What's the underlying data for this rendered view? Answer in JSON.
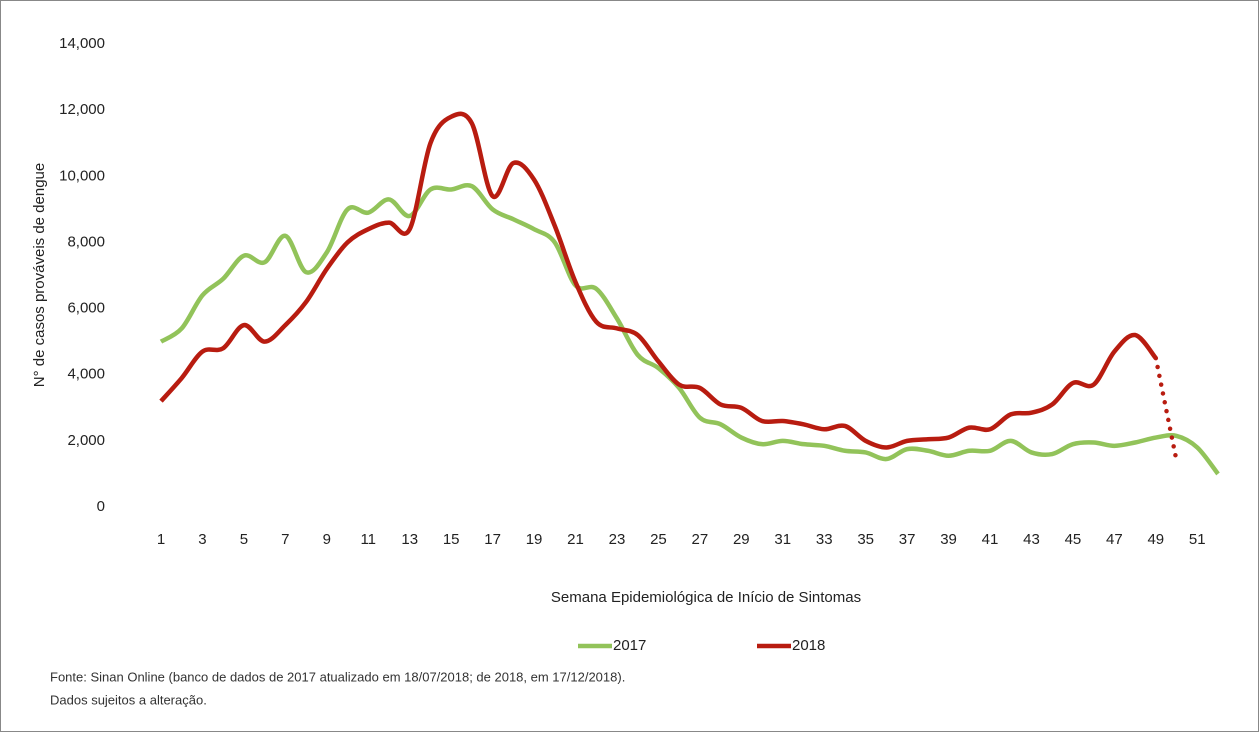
{
  "chart_data": {
    "type": "line",
    "y_label": "N° de casos prováveis de dengue",
    "x_label": "Semana Epidemiológica de Início de Sintomas",
    "x": [
      1,
      2,
      3,
      4,
      5,
      6,
      7,
      8,
      9,
      10,
      11,
      12,
      13,
      14,
      15,
      16,
      17,
      18,
      19,
      20,
      21,
      22,
      23,
      24,
      25,
      26,
      27,
      28,
      29,
      30,
      31,
      32,
      33,
      34,
      35,
      36,
      37,
      38,
      39,
      40,
      41,
      42,
      43,
      44,
      45,
      46,
      47,
      48,
      49,
      50,
      51,
      52
    ],
    "xlim": [
      1,
      52
    ],
    "xticks": [
      1,
      3,
      5,
      7,
      9,
      11,
      13,
      15,
      17,
      19,
      21,
      23,
      25,
      27,
      29,
      31,
      33,
      35,
      37,
      39,
      41,
      43,
      45,
      47,
      49,
      51
    ],
    "ylim": [
      0,
      14000
    ],
    "yticks": [
      0,
      {
        "value": 2000,
        "label": "2,000"
      },
      {
        "value": 4000,
        "label": "4,000"
      },
      {
        "value": 6000,
        "label": "6,000"
      },
      {
        "value": 8000,
        "label": "8,000"
      },
      {
        "value": 10000,
        "label": "10,000"
      },
      {
        "value": 12000,
        "label": "12,000"
      },
      {
        "value": 14000,
        "label": "14,000"
      }
    ],
    "series": [
      {
        "name": "2017",
        "color": "#92c35a",
        "values": [
          5000,
          5400,
          6400,
          6900,
          7600,
          7400,
          8200,
          7100,
          7700,
          9000,
          8900,
          9300,
          8800,
          9600,
          9600,
          9700,
          9000,
          8700,
          8400,
          8000,
          6700,
          6600,
          5700,
          4600,
          4200,
          3600,
          2700,
          2500,
          2100,
          1900,
          2000,
          1900,
          1850,
          1700,
          1650,
          1450,
          1750,
          1700,
          1550,
          1700,
          1700,
          2000,
          1650,
          1600,
          1900,
          1950,
          1850,
          1950,
          2100,
          2150,
          1800,
          1000
        ]
      },
      {
        "name": "2018",
        "color": "#b81c10",
        "last_segment": "dotted",
        "values": [
          3200,
          3900,
          4700,
          4800,
          5500,
          5000,
          5500,
          6200,
          7200,
          8000,
          8400,
          8600,
          8400,
          11000,
          11800,
          11600,
          9400,
          10400,
          9900,
          8500,
          6800,
          5600,
          5400,
          5200,
          4400,
          3700,
          3600,
          3100,
          3000,
          2600,
          2600,
          2500,
          2350,
          2450,
          2000,
          1800,
          2000,
          2050,
          2100,
          2400,
          2350,
          2800,
          2850,
          3100,
          3750,
          3700,
          4700,
          5200,
          4500,
          1400,
          null,
          null
        ]
      }
    ],
    "notes": [
      "Fonte: Sinan Online (banco de dados de 2017 atualizado em 18/07/2018; de 2018, em 17/12/2018).",
      "Dados sujeitos a alteração."
    ]
  }
}
